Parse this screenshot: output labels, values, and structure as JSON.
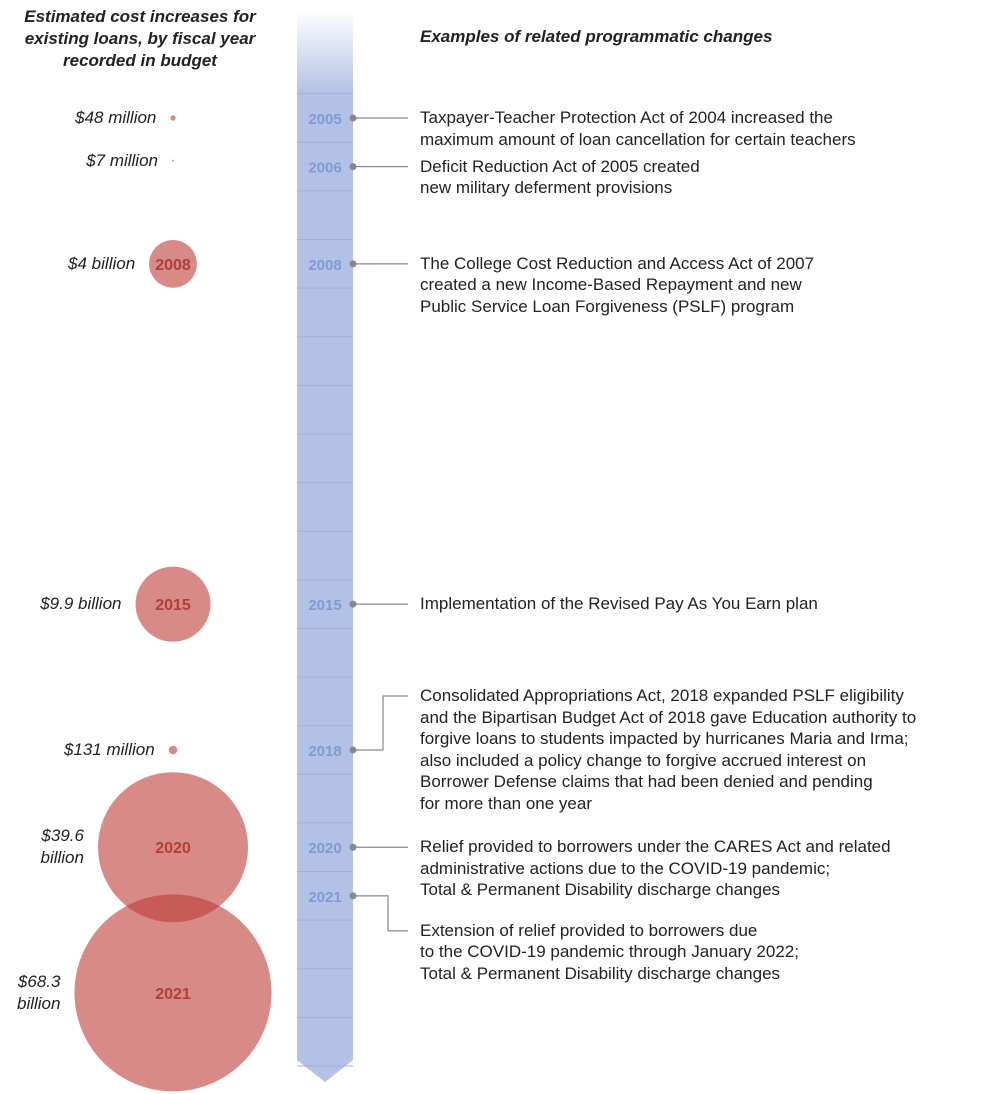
{
  "chart_data": {
    "type": "bubble-timeline",
    "left_header": "Estimated cost increases for existing loans, by fiscal year recorded in budget",
    "right_header": "Examples of related programmatic changes",
    "x": [
      2005,
      2006,
      2008,
      2015,
      2018,
      2020,
      2021
    ],
    "xlim": [
      2004.5,
      2024.5
    ],
    "values": [
      48,
      7,
      4000,
      9900,
      131,
      39600,
      68300
    ],
    "value_labels": [
      "$48 million",
      "$7 million",
      "$4 billion",
      "$9.9 billion",
      "$131 million",
      "$39.6 billion",
      "$68.3 billion"
    ],
    "bubble_labels": [
      null,
      null,
      "2008",
      "2015",
      null,
      "2020",
      "2021"
    ],
    "color": "#be3c37",
    "timeline_color": "#b3c1e6",
    "annotations": [
      "Taxpayer-Teacher Protection Act of 2004 increased the\nmaximum amount of loan cancellation for certain teachers",
      "Deficit Reduction Act of 2005 created\nnew military deferment provisions",
      "The College Cost Reduction and Access Act of 2007\ncreated a new Income-Based Repayment and new\nPublic Service Loan Forgiveness (PSLF) program",
      "Implementation of the Revised Pay As You Earn plan",
      "Consolidated Appropriations Act, 2018 expanded PSLF eligibility\nand the Bipartisan Budget Act of 2018 gave Education authority to\nforgive loans to students impacted by hurricanes Maria and Irma;\nalso included a policy change to forgive accrued interest on\nBorrower Defense claims that had been denied and pending\nfor more than one year",
      "Relief provided to borrowers under the CARES Act and related\nadministrative actions due to the COVID-19 pandemic;\nTotal & Permanent Disability discharge changes",
      "Extension of relief provided to borrowers due\nto the COVID-19 pandemic through January 2022;\nTotal & Permanent Disability discharge changes"
    ]
  }
}
